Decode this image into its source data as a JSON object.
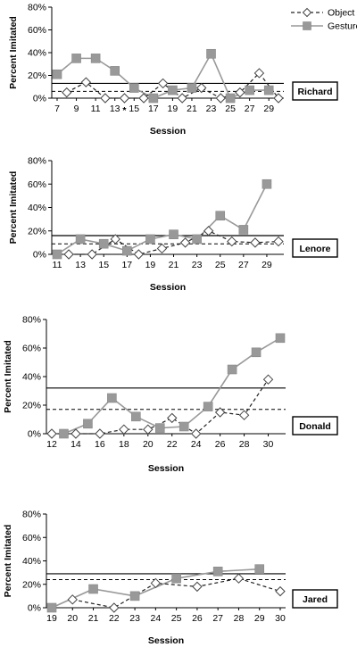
{
  "legend": {
    "object_label": "Object",
    "gesture_label": "Gesture"
  },
  "colors": {
    "object_line": "#222222",
    "gesture_line": "#999999",
    "gesture_marker": "#999999",
    "reference_line": "#000000"
  },
  "chart_data": [
    {
      "type": "line",
      "participant": "Richard",
      "xlabel": "Session",
      "ylabel": "Percent Imitated",
      "ylim": [
        0,
        80
      ],
      "y_ticks": [
        0,
        20,
        40,
        60,
        80
      ],
      "x_range": [
        7,
        30
      ],
      "x_ticks": [
        7,
        9,
        11,
        13,
        15,
        17,
        19,
        21,
        23,
        25,
        27,
        29
      ],
      "annotation": "*",
      "annotation_x": 14,
      "reference_lines": {
        "object_mean": 6,
        "gesture_mean": 13
      },
      "series": [
        {
          "name": "Object",
          "style": "dashed-open-diamond",
          "x": [
            8,
            10,
            12,
            14,
            16,
            18,
            20,
            22,
            24,
            26,
            28,
            30
          ],
          "y": [
            5,
            14,
            0,
            0,
            0,
            13,
            0,
            9,
            0,
            5,
            22,
            0
          ]
        },
        {
          "name": "Gesture",
          "style": "solid-filled-square",
          "x": [
            7,
            9,
            11,
            13,
            15,
            17,
            19,
            21,
            23,
            25,
            27,
            29
          ],
          "y": [
            21,
            35,
            35,
            24,
            9,
            0,
            7,
            9,
            39,
            0,
            7,
            7
          ]
        }
      ]
    },
    {
      "type": "line",
      "participant": "Lenore",
      "xlabel": "Session",
      "ylabel": "Percent Imitated",
      "ylim": [
        0,
        80
      ],
      "y_ticks": [
        0,
        20,
        40,
        60,
        80
      ],
      "x_range": [
        11,
        30
      ],
      "x_ticks": [
        11,
        13,
        15,
        17,
        19,
        21,
        23,
        25,
        27,
        29
      ],
      "reference_lines": {
        "object_mean": 9,
        "gesture_mean": 16
      },
      "series": [
        {
          "name": "Object",
          "style": "dashed-open-diamond",
          "x": [
            12,
            14,
            16,
            18,
            20,
            22,
            24,
            26,
            28,
            30
          ],
          "y": [
            0,
            0,
            13,
            0,
            5,
            10,
            20,
            11,
            10,
            11
          ]
        },
        {
          "name": "Gesture",
          "style": "solid-filled-square",
          "x": [
            11,
            13,
            15,
            17,
            19,
            21,
            23,
            25,
            27,
            29
          ],
          "y": [
            0,
            13,
            9,
            3,
            13,
            17,
            13,
            33,
            21,
            60
          ]
        }
      ]
    },
    {
      "type": "line",
      "participant": "Donald",
      "xlabel": "Session",
      "ylabel": "Percent Imitated",
      "ylim": [
        0,
        80
      ],
      "y_ticks": [
        0,
        20,
        40,
        60,
        80
      ],
      "x_range": [
        12,
        31
      ],
      "x_ticks": [
        12,
        14,
        16,
        18,
        20,
        22,
        24,
        26,
        28,
        30
      ],
      "reference_lines": {
        "object_mean": 17,
        "gesture_mean": 32
      },
      "series": [
        {
          "name": "Object",
          "style": "dashed-open-diamond",
          "x": [
            12,
            14,
            16,
            18,
            20,
            22,
            24,
            26,
            28,
            30
          ],
          "y": [
            0,
            0,
            0,
            3,
            3,
            11,
            0,
            15,
            13,
            38
          ]
        },
        {
          "name": "Gesture",
          "style": "solid-filled-square",
          "x": [
            13,
            15,
            17,
            19,
            21,
            23,
            25,
            27,
            29,
            31
          ],
          "y": [
            0,
            7,
            25,
            12,
            4,
            5,
            19,
            45,
            57,
            67
          ]
        }
      ]
    },
    {
      "type": "line",
      "participant": "Jared",
      "xlabel": "Session",
      "ylabel": "Percent Imitated",
      "ylim": [
        0,
        80
      ],
      "y_ticks": [
        0,
        20,
        40,
        60,
        80
      ],
      "x_range": [
        19,
        30
      ],
      "x_ticks": [
        19,
        20,
        21,
        22,
        23,
        24,
        25,
        26,
        27,
        28,
        29,
        30
      ],
      "reference_lines": {
        "object_mean": 24,
        "gesture_mean": 29
      },
      "series": [
        {
          "name": "Object",
          "style": "dashed-open-diamond",
          "x": [
            20,
            22,
            24,
            26,
            28,
            30
          ],
          "y": [
            7,
            0,
            21,
            18,
            25,
            14
          ]
        },
        {
          "name": "Gesture",
          "style": "solid-filled-square",
          "x": [
            19,
            21,
            23,
            25,
            27,
            29
          ],
          "y": [
            0,
            16,
            10,
            25,
            31,
            33
          ]
        }
      ]
    }
  ]
}
